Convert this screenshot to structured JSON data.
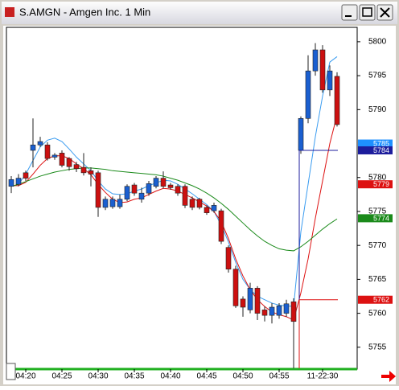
{
  "chart_data": {
    "type": "candlestick",
    "title": "S.AMGN - Amgen Inc. 1 Min",
    "open": [
      5778.7,
      5779.0,
      5780.7,
      5784.0,
      5784.8,
      5784.8,
      5783.0,
      5783.6,
      5782.8,
      5781.9,
      5781.5,
      5781.0,
      5780.7,
      5775.6,
      5775.7,
      5775.7,
      5776.8,
      5778.9,
      5776.8,
      5777.7,
      5778.7,
      5779.9,
      5778.9,
      5778.7,
      5778.7,
      5776.8,
      5776.8,
      5775.6,
      5775.1,
      5775.1,
      5769.7,
      5766.5,
      5762.1,
      5760.5,
      5763.7,
      5760.5,
      5759.7,
      5759.7,
      5760.0,
      5761.7,
      5784.0,
      5788.7,
      5795.7,
      5798.8,
      5792.9,
      5794.9
    ],
    "high": [
      5780.2,
      5780.5,
      5781.0,
      5788.7,
      5786.0,
      5785.2,
      5783.6,
      5784.0,
      5783.0,
      5782.3,
      5783.6,
      5781.5,
      5781.0,
      5777.2,
      5777.2,
      5777.5,
      5779.0,
      5779.2,
      5778.5,
      5779.5,
      5780.2,
      5780.9,
      5779.2,
      5779.0,
      5779.0,
      5777.2,
      5777.0,
      5775.9,
      5776.3,
      5775.4,
      5770.0,
      5767.0,
      5762.5,
      5764.5,
      5764.0,
      5761.0,
      5761.5,
      5761.5,
      5762.0,
      5762.2,
      5789.0,
      5798.0,
      5799.8,
      5799.5,
      5796.5,
      5795.5
    ],
    "low": [
      5777.7,
      5778.7,
      5779.5,
      5781.5,
      5784.5,
      5782.5,
      5782.6,
      5781.5,
      5781.0,
      5780.8,
      5780.3,
      5778.7,
      5774.2,
      5775.2,
      5775.4,
      5775.4,
      5776.5,
      5777.3,
      5776.3,
      5777.3,
      5778.4,
      5778.4,
      5778.2,
      5777.3,
      5775.5,
      5775.2,
      5775.3,
      5774.5,
      5774.8,
      5770.2,
      5766.0,
      5760.8,
      5759.5,
      5760.0,
      5759.0,
      5758.8,
      5758.5,
      5759.2,
      5759.5,
      5751.9,
      5783.5,
      5788.0,
      5795.0,
      5792.5,
      5792.0,
      5787.5
    ],
    "close": [
      5779.7,
      5779.9,
      5779.9,
      5784.8,
      5785.3,
      5782.8,
      5783.3,
      5781.8,
      5781.6,
      5781.3,
      5780.7,
      5780.5,
      5775.6,
      5776.8,
      5776.8,
      5776.8,
      5778.7,
      5777.7,
      5777.7,
      5779.1,
      5779.9,
      5778.7,
      5778.5,
      5777.7,
      5775.9,
      5775.6,
      5775.6,
      5774.8,
      5775.9,
      5770.6,
      5766.5,
      5761.1,
      5760.9,
      5763.7,
      5760.0,
      5759.7,
      5760.9,
      5761.1,
      5761.4,
      5758.8,
      5788.7,
      5795.7,
      5798.8,
      5792.9,
      5795.7,
      5787.8
    ],
    "up_color": "#1a5fd0",
    "down_color": "#cc1010",
    "lines": [
      {
        "color": "#3a9cf0",
        "values": [
          5778.7,
          5779.0,
          5780.5,
          5782.5,
          5784.5,
          5785.5,
          5785.8,
          5785.3,
          5784.2,
          5783.0,
          5782.0,
          5781.0,
          5779.5,
          5778.3,
          5777.6,
          5777.5,
          5777.6,
          5778.0,
          5778.3,
          5778.8,
          5779.2,
          5779.6,
          5779.5,
          5779.0,
          5778.3,
          5777.6,
          5776.8,
          5776.0,
          5775.0,
          5773.0,
          5770.5,
          5767.5,
          5765.0,
          5763.5,
          5762.5,
          5762.0,
          5761.5,
          5761.2,
          5761.1,
          5761.0,
          5772.0,
          5779.0,
          5786.0,
          5792.0,
          5797.0,
          5797.8
        ]
      },
      {
        "color": "#dd1111",
        "values": [
          5778.8,
          5778.8,
          5779.3,
          5780.5,
          5781.8,
          5782.8,
          5783.2,
          5783.2,
          5782.8,
          5782.0,
          5781.3,
          5780.4,
          5779.0,
          5777.8,
          5776.8,
          5776.3,
          5776.4,
          5776.8,
          5777.0,
          5777.5,
          5778.0,
          5778.4,
          5778.3,
          5778.0,
          5777.5,
          5777.0,
          5776.4,
          5775.8,
          5775.0,
          5773.5,
          5771.0,
          5768.0,
          5765.5,
          5763.5,
          5762.0,
          5761.0,
          5760.2,
          5759.8,
          5759.5,
          5759.0,
          5763.0,
          5768.0,
          5774.0,
          5779.5,
          5785.0,
          5789.2
        ]
      },
      {
        "color": "#1a8a1a",
        "values": [
          5778.7,
          5779.0,
          5779.4,
          5779.8,
          5780.2,
          5780.5,
          5780.8,
          5781.0,
          5781.2,
          5781.3,
          5781.4,
          5781.4,
          5781.3,
          5781.2,
          5781.0,
          5780.9,
          5780.8,
          5780.7,
          5780.6,
          5780.5,
          5780.4,
          5780.2,
          5779.9,
          5779.6,
          5779.2,
          5778.8,
          5778.3,
          5777.7,
          5777.0,
          5776.2,
          5775.3,
          5774.3,
          5773.3,
          5772.3,
          5771.4,
          5770.6,
          5770.0,
          5769.5,
          5769.3,
          5769.2,
          5769.8,
          5770.6,
          5771.5,
          5772.4,
          5773.2,
          5773.9
        ]
      }
    ],
    "badges": [
      {
        "value": 5785,
        "color": "#1e90ff"
      },
      {
        "value": 5784,
        "color": "#1c1c9c",
        "level_line": true
      },
      {
        "value": 5779,
        "color": "#dd1111"
      },
      {
        "value": 5774,
        "color": "#1a8a1a"
      },
      {
        "value": 5762,
        "color": "#dd1111",
        "level_line": true
      }
    ],
    "xticks": [
      {
        "value": 2,
        "label": "04:20"
      },
      {
        "value": 7,
        "label": "04:25"
      },
      {
        "value": 12,
        "label": "04:30"
      },
      {
        "value": 17,
        "label": "04:35"
      },
      {
        "value": 22,
        "label": "04:40"
      },
      {
        "value": 27,
        "label": "04:45"
      },
      {
        "value": 32,
        "label": "04:50"
      },
      {
        "value": 37,
        "label": "04:55"
      },
      {
        "value": 43,
        "label": "11-22:30"
      }
    ],
    "ylim": [
      5751.9,
      5802.0
    ],
    "yticks": [
      5800,
      5795,
      5790,
      5780,
      5775,
      5770,
      5765,
      5760,
      5755
    ]
  }
}
